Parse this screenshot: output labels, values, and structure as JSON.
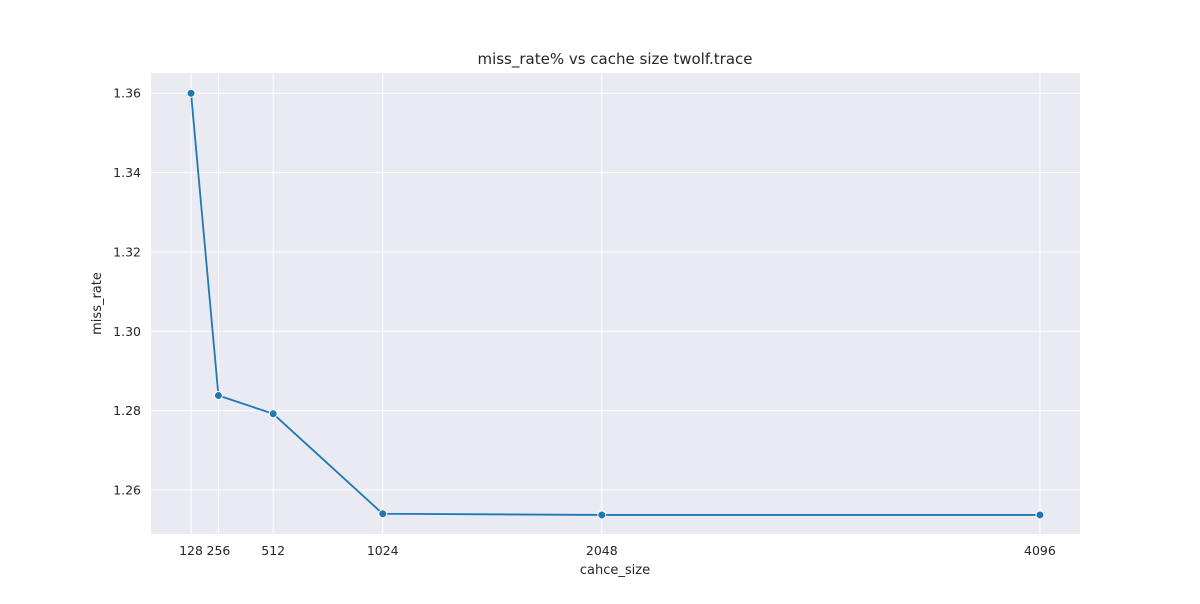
{
  "chart_data": {
    "type": "line",
    "title": "miss_rate% vs cache size twolf.trace",
    "xlabel": "cahce_size",
    "ylabel": "miss_rate",
    "x": [
      128,
      256,
      512,
      1024,
      2048,
      4096
    ],
    "series": [
      {
        "values": [
          1.36,
          1.2838,
          1.2792,
          1.254,
          1.2537,
          1.2537
        ]
      }
    ],
    "xticks": [
      128,
      256,
      512,
      1024,
      2048,
      4096
    ],
    "xtick_labels": [
      "128",
      "256",
      "512",
      "1024",
      "2048",
      "4096"
    ],
    "yticks": [
      1.26,
      1.28,
      1.3,
      1.32,
      1.34,
      1.36
    ],
    "ytick_labels": [
      "1.26",
      "1.28",
      "1.30",
      "1.32",
      "1.34",
      "1.36"
    ],
    "xlim": [
      -59.2,
      4283.2
    ],
    "ylim": [
      1.2489,
      1.3651
    ],
    "grid": true,
    "legend": "none",
    "colors": {
      "background": "#eaeaf2",
      "grid": "#ffffff",
      "line": "#1f77b4",
      "marker_edge": "#ffffff"
    }
  }
}
